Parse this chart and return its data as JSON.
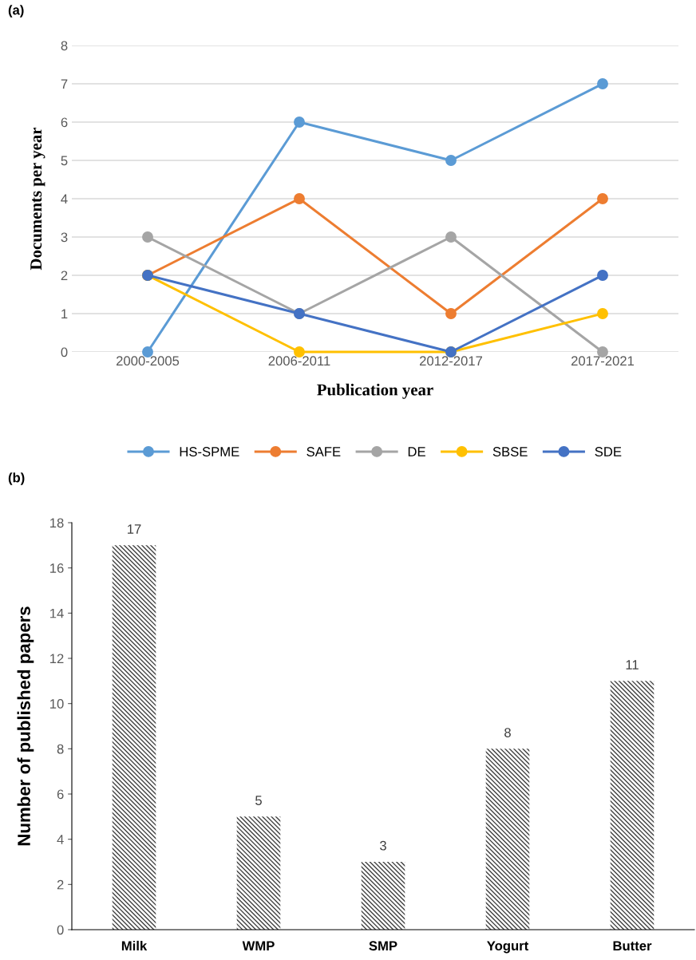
{
  "chart_data": [
    {
      "type": "line",
      "title": "(a)",
      "xlabel": "Publication year",
      "ylabel": "Documents per year",
      "categories": [
        "2000-2005",
        "2006-2011",
        "2012-2017",
        "2017-2021"
      ],
      "series": [
        {
          "name": "HS-SPME",
          "color": "#5b9bd5",
          "values": [
            0,
            6,
            5,
            7
          ]
        },
        {
          "name": "SAFE",
          "color": "#ed7d31",
          "values": [
            2,
            4,
            1,
            4
          ]
        },
        {
          "name": "DE",
          "color": "#a5a5a5",
          "values": [
            3,
            1,
            3,
            0
          ]
        },
        {
          "name": "SBSE",
          "color": "#ffc000",
          "values": [
            2,
            0,
            0,
            1
          ]
        },
        {
          "name": "SDE",
          "color": "#4472c4",
          "values": [
            2,
            1,
            0,
            2
          ]
        }
      ],
      "ylim": [
        0,
        8
      ],
      "yticks": [
        0,
        1,
        2,
        3,
        4,
        5,
        6,
        7,
        8
      ],
      "grid": "y",
      "legend": "bottom",
      "marker": "circle",
      "line_style": "solid"
    },
    {
      "type": "bar",
      "title": "(b)",
      "ylabel": "Number of published papers",
      "categories": [
        "Milk",
        "WMP",
        "SMP",
        "Yogurt",
        "Butter"
      ],
      "values": [
        17,
        5,
        3,
        8,
        11
      ],
      "color": "#404040",
      "ylim": [
        0,
        18
      ],
      "yticks": [
        0,
        2,
        4,
        6,
        8,
        10,
        12,
        14,
        16,
        18
      ],
      "data_labels": true
    }
  ]
}
